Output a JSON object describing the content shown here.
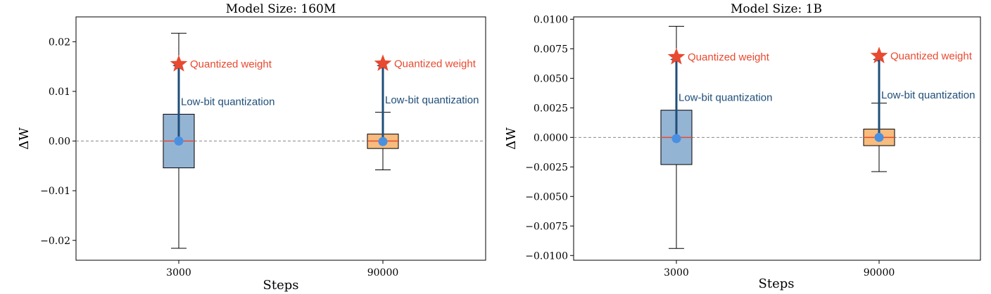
{
  "chart_data": [
    {
      "type": "box",
      "title": "Model Size: 160M",
      "xlabel": "Steps",
      "ylabel": "ΔW",
      "ylim": [
        -0.024,
        0.025
      ],
      "yticks": [
        -0.02,
        -0.01,
        0.0,
        0.01,
        0.02
      ],
      "ytick_labels": [
        "−0.02",
        "−0.01",
        "0.00",
        "0.01",
        "0.02"
      ],
      "zero_line": true,
      "boxes": [
        {
          "category": "3000",
          "whisker_low": -0.0216,
          "q1": -0.0054,
          "median": 0.0,
          "q3": 0.0054,
          "whisker_high": 0.0217,
          "color": "#94b4d4",
          "point": 0.0,
          "arrow_to": 0.0152,
          "star": 0.0155,
          "label_low": "Low-bit quantization",
          "label_star": "Quantized weight",
          "label_low_y": 0.0072
        },
        {
          "category": "90000",
          "whisker_low": -0.0058,
          "q1": -0.0015,
          "median": 0.0,
          "q3": 0.0014,
          "whisker_high": 0.0058,
          "color": "#f7bc7e",
          "point": -0.0001,
          "arrow_to": 0.0152,
          "star": 0.0156,
          "label_low": "Low-bit quantization",
          "label_star": "Quantized weight",
          "label_low_y": 0.0076
        }
      ]
    },
    {
      "type": "box",
      "title": "Model Size: 1B",
      "xlabel": "Steps",
      "ylabel": "ΔW",
      "ylim": [
        -0.0104,
        0.0102
      ],
      "yticks": [
        -0.01,
        -0.0075,
        -0.005,
        -0.0025,
        0.0,
        0.0025,
        0.005,
        0.0075,
        0.01
      ],
      "ytick_labels": [
        "−0.0100",
        "−0.0075",
        "−0.0050",
        "−0.0025",
        "0.0000",
        "0.0025",
        "0.0050",
        "0.0075",
        "0.0100"
      ],
      "zero_line": true,
      "boxes": [
        {
          "category": "3000",
          "whisker_low": -0.0094,
          "q1": -0.0023,
          "median": 0.0,
          "q3": 0.0023,
          "whisker_high": 0.0094,
          "color": "#94b4d4",
          "point": -0.0001,
          "arrow_to": 0.0066,
          "star": 0.0068,
          "label_low": "Low-bit quantization",
          "label_star": "Quantized weight",
          "label_low_y": 0.0031
        },
        {
          "category": "90000",
          "whisker_low": -0.0029,
          "q1": -0.0007,
          "median": 0.0,
          "q3": 0.0007,
          "whisker_high": 0.0029,
          "color": "#f7bc7e",
          "point": 0.0,
          "arrow_to": 0.0066,
          "star": 0.0069,
          "label_low": "Low-bit quantization",
          "label_star": "Quantized weight",
          "label_low_y": 0.0033
        }
      ]
    }
  ]
}
